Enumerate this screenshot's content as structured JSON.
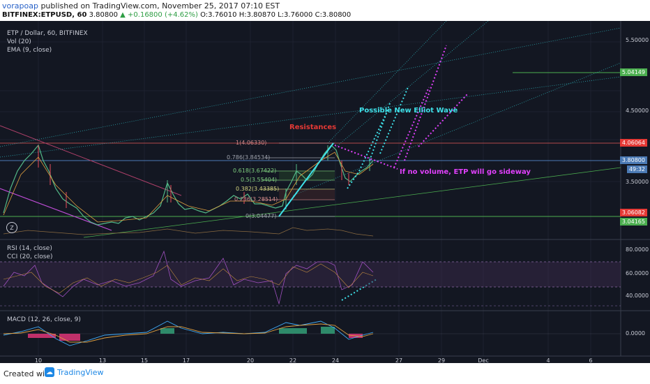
{
  "header": {
    "user": "vorapoap",
    "published": " published on TradingView.com, November 25, 2017 07:10 EST",
    "symbol": "BITFINEX:ETPUSD, 60",
    "price": "3.80800",
    "change": "▲ +0.16800 (+4.62%)",
    "ohlc": "O:3.76010 H:3.80870 L:3.76000 C:3.80800"
  },
  "legend": {
    "main": [
      "ETP / Dollar, 60, BITFINEX",
      "Vol (20)",
      "EMA (9, close)"
    ],
    "osc": [
      "RSI (14, close)",
      "CCI (20, close)"
    ],
    "macd": "MACD (12, 26, close, 9)"
  },
  "price_axis": {
    "ticks": [
      "5.50000",
      "4.50000",
      "3.50000"
    ],
    "labels": [
      {
        "text": "5.04149",
        "color": "#4caf50"
      },
      {
        "text": "4.06064",
        "color": "#e53935"
      },
      {
        "text": "3.80800",
        "color": "#4b7ab5"
      },
      {
        "text": "49:32",
        "color": "#4b7ab5"
      },
      {
        "text": "3.06082",
        "color": "#e53935"
      },
      {
        "text": "3.04165",
        "color": "#4caf50"
      }
    ]
  },
  "osc_axis": {
    "ticks": [
      "80.0000",
      "60.0000",
      "40.0000"
    ]
  },
  "macd_axis": {
    "ticks": [
      "0.0000"
    ]
  },
  "time_axis": [
    "10",
    "13",
    "15",
    "17",
    "20",
    "22",
    "24",
    "27",
    "29",
    "Dec",
    "4",
    "6"
  ],
  "fib_levels": [
    {
      "label": "1(4.06330)",
      "color": "#d48b8b"
    },
    {
      "label": "0.786(3.84534)",
      "color": "#9fa3ad"
    },
    {
      "label": "0.618(3.67422)",
      "color": "#7fcf7f"
    },
    {
      "label": "0.5(3.55404)",
      "color": "#7fcf7f"
    },
    {
      "label": "0.382(3.43385)",
      "color": "#d4d47f"
    },
    {
      "label": "0.236(3.28514)",
      "color": "#d48b8b"
    },
    {
      "label": "0(3.04477)",
      "color": "#9fa3ad"
    }
  ],
  "annotations": {
    "resistances": "Resistances",
    "elliot": "Possible New Elliot Wave",
    "sideway": "If no volume, ETP will go sideway"
  },
  "colors": {
    "background": "#131722",
    "up_candle": "#53b987",
    "down_candle": "#eb4d5c",
    "cyan": "#3fe0e8",
    "magenta": "#e040fb"
  },
  "footer": {
    "created": "Created with",
    "brand": "TradingView"
  }
}
